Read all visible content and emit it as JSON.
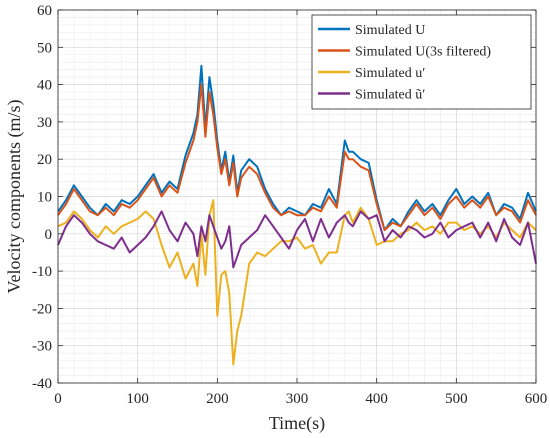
{
  "chart_data": {
    "type": "line",
    "xlabel": "Time(s)",
    "ylabel": "Velocity components (m/s)",
    "xlim": [
      0,
      600
    ],
    "ylim": [
      -40,
      60
    ],
    "xticks": [
      0,
      100,
      200,
      300,
      400,
      500,
      600
    ],
    "yticks": [
      -40,
      -30,
      -20,
      -10,
      0,
      10,
      20,
      30,
      40,
      50,
      60
    ],
    "xtick_labels": [
      "0",
      "100",
      "200",
      "300",
      "400",
      "500",
      "600"
    ],
    "ytick_labels": [
      "-40",
      "-30",
      "-20",
      "-10",
      "0",
      "10",
      "20",
      "30",
      "40",
      "50",
      "60"
    ],
    "grid": true,
    "minor_grid": true,
    "legend_position": "top-right",
    "series": [
      {
        "name": "Simulated U",
        "color": "#0072BD",
        "x": [
          0,
          10,
          20,
          30,
          40,
          50,
          60,
          70,
          80,
          90,
          100,
          110,
          120,
          130,
          140,
          150,
          160,
          170,
          175,
          180,
          185,
          190,
          195,
          200,
          205,
          210,
          215,
          220,
          225,
          230,
          240,
          250,
          260,
          270,
          280,
          290,
          300,
          310,
          320,
          330,
          340,
          350,
          360,
          365,
          370,
          380,
          390,
          400,
          410,
          420,
          430,
          440,
          450,
          460,
          470,
          480,
          490,
          500,
          510,
          520,
          530,
          540,
          550,
          560,
          570,
          580,
          590,
          600
        ],
        "values": [
          6,
          9,
          13,
          10,
          7,
          5,
          8,
          6,
          9,
          8,
          10,
          13,
          16,
          11,
          14,
          12,
          21,
          27,
          32,
          45,
          28,
          42,
          35,
          25,
          17,
          22,
          14,
          21,
          11,
          17,
          20,
          18,
          12,
          8,
          5,
          7,
          6,
          5,
          8,
          7,
          12,
          8,
          25,
          22,
          22,
          20,
          19,
          9,
          1,
          4,
          2,
          6,
          9,
          6,
          8,
          5,
          9,
          12,
          8,
          10,
          8,
          11,
          5,
          8,
          7,
          4,
          11,
          6
        ]
      },
      {
        "name": "Simulated U(3s filtered)",
        "color": "#D95319",
        "x": [
          0,
          10,
          20,
          30,
          40,
          50,
          60,
          70,
          80,
          90,
          100,
          110,
          120,
          130,
          140,
          150,
          160,
          170,
          175,
          180,
          185,
          190,
          195,
          200,
          205,
          210,
          215,
          220,
          225,
          230,
          240,
          250,
          260,
          270,
          280,
          290,
          300,
          310,
          320,
          330,
          340,
          350,
          360,
          365,
          370,
          380,
          390,
          400,
          410,
          420,
          430,
          440,
          450,
          460,
          470,
          480,
          490,
          500,
          510,
          520,
          530,
          540,
          550,
          560,
          570,
          580,
          590,
          600
        ],
        "values": [
          5,
          8,
          12,
          9,
          6,
          5,
          7,
          5,
          8,
          7,
          9,
          12,
          15,
          10,
          13,
          11,
          19,
          25,
          30,
          40,
          26,
          38,
          32,
          23,
          16,
          20,
          13,
          19,
          10,
          15,
          18,
          16,
          11,
          7,
          5,
          6,
          5,
          5,
          7,
          6,
          10,
          7,
          22,
          20,
          20,
          18,
          17,
          8,
          1,
          3,
          2,
          5,
          8,
          5,
          7,
          4,
          8,
          10,
          7,
          9,
          7,
          10,
          5,
          7,
          6,
          3,
          9,
          5
        ]
      },
      {
        "name": "Simulated u′",
        "color": "#EDB120",
        "x": [
          0,
          10,
          20,
          30,
          40,
          50,
          60,
          70,
          80,
          90,
          100,
          110,
          120,
          130,
          140,
          150,
          160,
          170,
          175,
          180,
          185,
          190,
          195,
          200,
          205,
          210,
          215,
          220,
          225,
          230,
          240,
          250,
          260,
          270,
          280,
          290,
          300,
          310,
          320,
          330,
          340,
          350,
          360,
          365,
          370,
          380,
          390,
          400,
          410,
          420,
          430,
          440,
          450,
          460,
          470,
          480,
          490,
          500,
          510,
          520,
          530,
          540,
          550,
          560,
          570,
          580,
          590,
          600
        ],
        "values": [
          2,
          3,
          6,
          4,
          1,
          -1,
          2,
          0,
          2,
          3,
          4,
          6,
          4,
          -3,
          -9,
          -5,
          -12,
          -8,
          -14,
          0,
          -11,
          5,
          9,
          -22,
          -11,
          -10,
          -16,
          -35,
          -26,
          -22,
          -8,
          -5,
          -6,
          -4,
          -2,
          -2,
          -1,
          -4,
          -3,
          -8,
          -5,
          -5,
          5,
          6,
          3,
          7,
          4,
          -3,
          -2,
          -2,
          0,
          1,
          3,
          1,
          2,
          0,
          3,
          3,
          1,
          2,
          0,
          2,
          -1,
          3,
          1,
          -1,
          3,
          1
        ]
      },
      {
        "name": "Simulated ũ′",
        "color": "#7E2F8E",
        "x": [
          0,
          10,
          20,
          30,
          40,
          50,
          60,
          70,
          80,
          90,
          100,
          110,
          120,
          130,
          140,
          150,
          160,
          170,
          175,
          180,
          185,
          190,
          195,
          200,
          205,
          210,
          215,
          220,
          225,
          230,
          240,
          250,
          260,
          270,
          280,
          290,
          300,
          310,
          320,
          330,
          340,
          350,
          360,
          365,
          370,
          380,
          390,
          400,
          410,
          420,
          430,
          440,
          450,
          460,
          470,
          480,
          490,
          500,
          510,
          520,
          530,
          540,
          550,
          560,
          570,
          580,
          590,
          600
        ],
        "values": [
          -3,
          2,
          5,
          3,
          0,
          -2,
          -3,
          -4,
          -1,
          -5,
          -3,
          -1,
          2,
          6,
          1,
          -2,
          3,
          0,
          -6,
          2,
          -2,
          5,
          2,
          -1,
          -4,
          -2,
          2,
          -9,
          -6,
          -3,
          -1,
          1,
          5,
          2,
          -1,
          -4,
          1,
          4,
          -2,
          4,
          -1,
          3,
          5,
          3,
          2,
          6,
          4,
          5,
          -2,
          1,
          -1,
          2,
          1,
          -1,
          0,
          3,
          -1,
          1,
          2,
          3,
          -1,
          3,
          -2,
          4,
          -1,
          -3,
          3,
          -8
        ]
      }
    ],
    "legend": {
      "items": [
        {
          "label": "Simulated U",
          "color": "#0072BD"
        },
        {
          "label": "Simulated U(3s filtered)",
          "color": "#D95319"
        },
        {
          "label": "Simulated u′",
          "color": "#EDB120"
        },
        {
          "label": "Simulated ũ′",
          "color": "#7E2F8E"
        }
      ]
    }
  }
}
